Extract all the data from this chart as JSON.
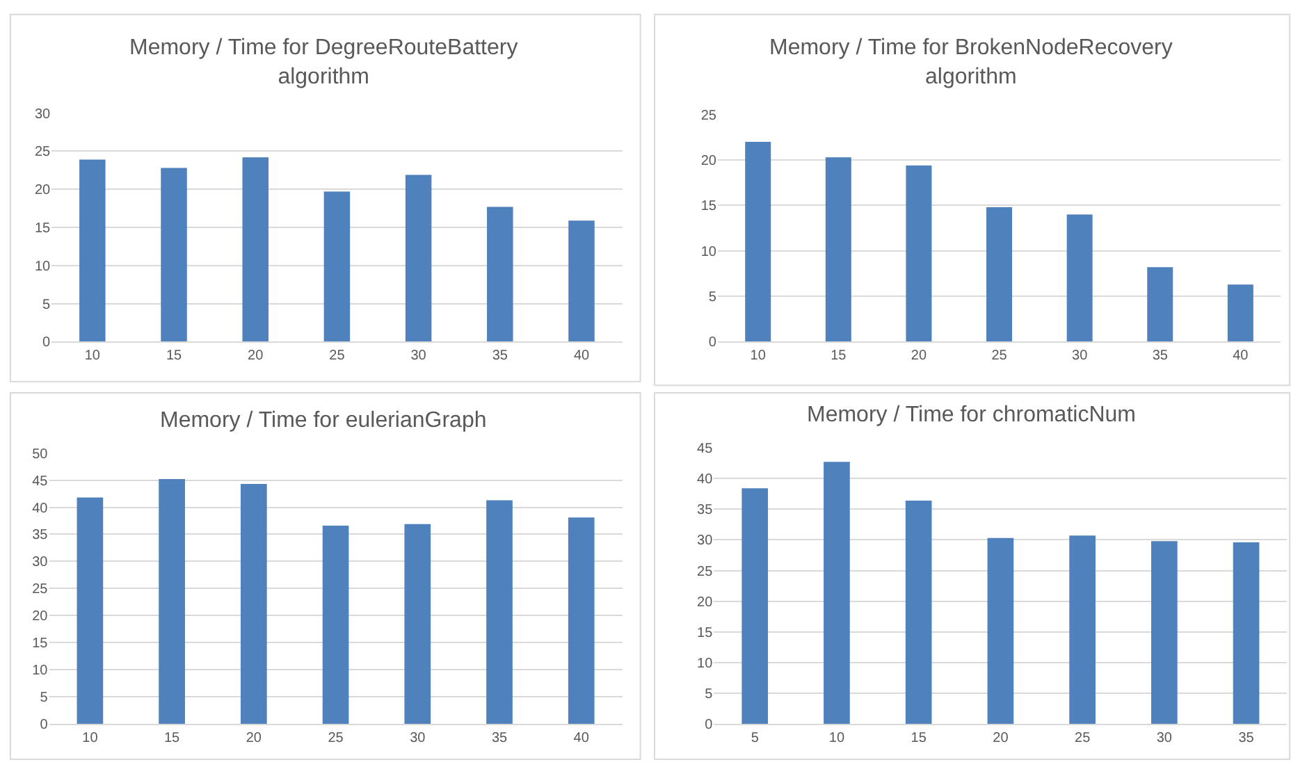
{
  "chart_data": [
    {
      "type": "bar",
      "title": "Memory / Time for DegreeRouteBattery\nalgorithm",
      "categories": [
        "10",
        "15",
        "20",
        "25",
        "30",
        "35",
        "40"
      ],
      "values": [
        23.9,
        22.8,
        24.2,
        19.7,
        21.9,
        17.7,
        15.9
      ],
      "color": "#4f81bd",
      "ylim": [
        0,
        30
      ],
      "yticks": [
        0,
        5,
        10,
        15,
        20,
        25,
        30
      ],
      "grid": "y"
    },
    {
      "type": "bar",
      "title": "Memory / Time for BrokenNodeRecovery\nalgorithm",
      "categories": [
        "10",
        "15",
        "20",
        "25",
        "30",
        "35",
        "40"
      ],
      "values": [
        22.0,
        20.3,
        19.4,
        14.8,
        14.0,
        8.2,
        6.3
      ],
      "color": "#4f81bd",
      "ylim": [
        0,
        25
      ],
      "yticks": [
        0,
        5,
        10,
        15,
        20,
        25
      ],
      "grid": "y"
    },
    {
      "type": "bar",
      "title": "Memory / Time for eulerianGraph",
      "categories": [
        "10",
        "15",
        "20",
        "25",
        "30",
        "35",
        "40"
      ],
      "values": [
        41.8,
        45.2,
        44.3,
        36.6,
        36.9,
        41.3,
        38.1
      ],
      "color": "#4f81bd",
      "ylim": [
        0,
        50
      ],
      "yticks": [
        0,
        5,
        10,
        15,
        20,
        25,
        30,
        35,
        40,
        45,
        50
      ],
      "grid": "y"
    },
    {
      "type": "bar",
      "title": "Memory / Time for chromaticNum",
      "categories": [
        "5",
        "10",
        "15",
        "20",
        "25",
        "30",
        "35"
      ],
      "values": [
        38.4,
        42.7,
        36.4,
        30.3,
        30.7,
        29.8,
        29.6
      ],
      "color": "#4f81bd",
      "ylim": [
        0,
        45
      ],
      "yticks": [
        0,
        5,
        10,
        15,
        20,
        25,
        30,
        35,
        40,
        45
      ],
      "grid": "y"
    }
  ]
}
